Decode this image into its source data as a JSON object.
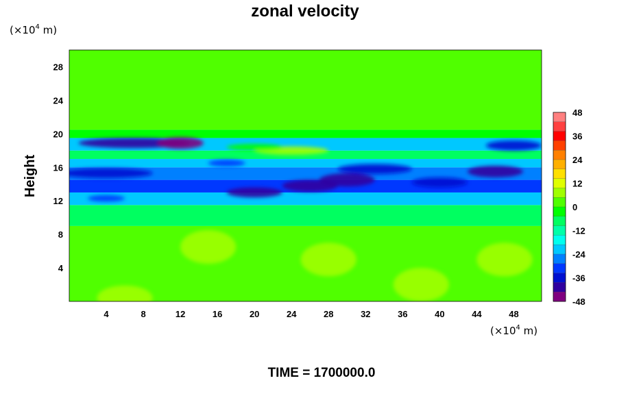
{
  "chart_data": {
    "type": "heatmap",
    "title": "zonal velocity",
    "ylabel": "Height",
    "x_unit": {
      "prefix": "(×10",
      "exponent": "4",
      "suffix": " m)"
    },
    "y_unit": {
      "prefix": "(×10",
      "exponent": "4",
      "suffix": " m)"
    },
    "xlim": [
      0,
      51
    ],
    "ylim": [
      0,
      30
    ],
    "x_ticks": [
      4,
      8,
      12,
      16,
      20,
      24,
      28,
      32,
      36,
      40,
      44,
      48
    ],
    "y_ticks": [
      4,
      8,
      12,
      16,
      20,
      24,
      28
    ],
    "colorbar": {
      "ticks": [
        48,
        36,
        24,
        12,
        0,
        -12,
        -24,
        -36,
        -48
      ],
      "range": [
        -48,
        48
      ],
      "colors": [
        "#800080",
        "#3000a0",
        "#0010d0",
        "#0038ff",
        "#0080ff",
        "#00c8ff",
        "#00ffee",
        "#00ffa8",
        "#00ff60",
        "#00ff00",
        "#50ff00",
        "#a0ff00",
        "#e0ff00",
        "#ffe000",
        "#ffb000",
        "#ff8000",
        "#ff4000",
        "#ff0000",
        "#ff4040",
        "#ff8080"
      ]
    },
    "field_bands": [
      {
        "y_range": [
          0,
          9
        ],
        "value": 2
      },
      {
        "y_range": [
          9,
          11.5
        ],
        "value": -8
      },
      {
        "y_range": [
          11.5,
          13
        ],
        "value": -22
      },
      {
        "y_range": [
          13,
          14.5
        ],
        "value": -30
      },
      {
        "y_range": [
          14.5,
          16
        ],
        "value": -28
      },
      {
        "y_range": [
          16,
          17
        ],
        "value": -20
      },
      {
        "y_range": [
          17,
          18
        ],
        "value": -8
      },
      {
        "y_range": [
          18,
          19.5
        ],
        "value": -20
      },
      {
        "y_range": [
          19.5,
          20.5
        ],
        "value": -3
      },
      {
        "y_range": [
          20.5,
          30
        ],
        "value": 0
      }
    ],
    "field_features": [
      {
        "x": 7,
        "y": 18.9,
        "rx": 6,
        "ry": 0.6,
        "value": -42
      },
      {
        "x": 12,
        "y": 18.9,
        "rx": 2.5,
        "ry": 0.7,
        "value": -46
      },
      {
        "x": 48,
        "y": 18.6,
        "rx": 3,
        "ry": 0.6,
        "value": -36
      },
      {
        "x": 4,
        "y": 15.3,
        "rx": 5,
        "ry": 0.6,
        "value": -38
      },
      {
        "x": 20,
        "y": 13.0,
        "rx": 3,
        "ry": 0.6,
        "value": -40
      },
      {
        "x": 26,
        "y": 13.8,
        "rx": 3,
        "ry": 0.7,
        "value": -40
      },
      {
        "x": 30,
        "y": 14.5,
        "rx": 3,
        "ry": 0.8,
        "value": -42
      },
      {
        "x": 33,
        "y": 15.8,
        "rx": 4,
        "ry": 0.6,
        "value": -38
      },
      {
        "x": 40,
        "y": 14.2,
        "rx": 3,
        "ry": 0.6,
        "value": -38
      },
      {
        "x": 46,
        "y": 15.5,
        "rx": 3,
        "ry": 0.7,
        "value": -40
      },
      {
        "x": 17,
        "y": 16.5,
        "rx": 2,
        "ry": 0.4,
        "value": -32
      },
      {
        "x": 4,
        "y": 12.3,
        "rx": 2,
        "ry": 0.4,
        "value": -32
      },
      {
        "x": 6,
        "y": 0.4,
        "rx": 3,
        "ry": 1.5,
        "value": 8
      },
      {
        "x": 15,
        "y": 6.5,
        "rx": 3,
        "ry": 2,
        "value": 6
      },
      {
        "x": 28,
        "y": 5,
        "rx": 3,
        "ry": 2,
        "value": 7
      },
      {
        "x": 47,
        "y": 5,
        "rx": 3,
        "ry": 2,
        "value": 7
      },
      {
        "x": 38,
        "y": 2,
        "rx": 3,
        "ry": 2,
        "value": 5
      },
      {
        "x": 24,
        "y": 18,
        "rx": 4,
        "ry": 0.5,
        "value": 5
      },
      {
        "x": 20,
        "y": 18.4,
        "rx": 3,
        "ry": 0.4,
        "value": -2
      }
    ]
  },
  "footer": {
    "time_label": "TIME = 1700000.0"
  }
}
